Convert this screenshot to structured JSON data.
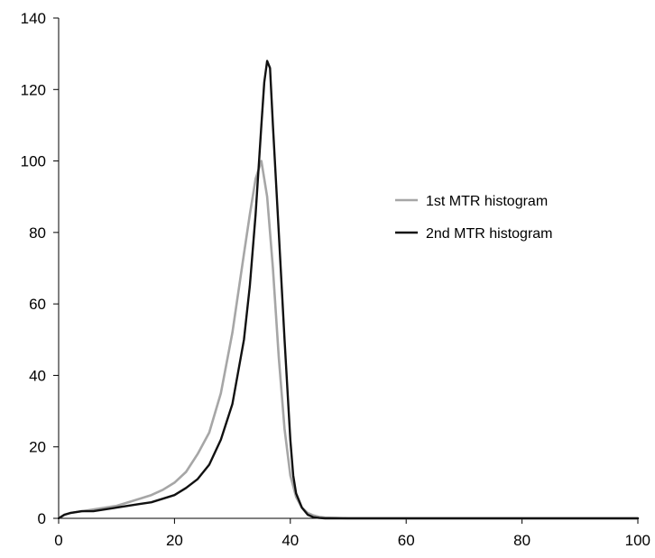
{
  "chart_data": {
    "type": "line",
    "title": "",
    "xlabel": "",
    "ylabel": "",
    "xlim": [
      0,
      100
    ],
    "ylim": [
      0,
      140
    ],
    "xticks": [
      0,
      20,
      40,
      60,
      80,
      100
    ],
    "yticks": [
      0,
      20,
      40,
      60,
      80,
      100,
      120,
      140
    ],
    "grid": false,
    "legend_position": "right",
    "series": [
      {
        "name": "1st MTR histogram",
        "color": "#a6a6a6",
        "x": [
          0,
          1,
          2,
          4,
          6,
          8,
          10,
          12,
          14,
          16,
          18,
          20,
          22,
          24,
          26,
          28,
          30,
          32,
          33,
          34,
          35,
          36,
          37,
          38,
          39,
          40,
          41,
          42,
          43,
          44,
          45,
          46,
          48,
          50,
          60,
          70,
          80,
          90,
          100
        ],
        "y": [
          0,
          1,
          1.5,
          2,
          2.5,
          3,
          3.5,
          4.5,
          5.5,
          6.5,
          8,
          10,
          13,
          18,
          24,
          35,
          52,
          74,
          85,
          95,
          100,
          90,
          70,
          45,
          25,
          12,
          6,
          3,
          1.5,
          0.8,
          0.4,
          0.2,
          0.1,
          0,
          0,
          0,
          0,
          0,
          0
        ]
      },
      {
        "name": "2nd MTR histogram",
        "color": "#111111",
        "x": [
          0,
          1,
          2,
          4,
          6,
          8,
          10,
          12,
          14,
          16,
          18,
          20,
          22,
          24,
          26,
          28,
          30,
          32,
          33,
          34,
          35,
          35.5,
          36,
          36.5,
          37,
          38,
          39,
          40,
          40.5,
          41,
          42,
          43,
          44,
          45,
          46,
          48,
          50,
          60,
          70,
          80,
          90,
          100
        ],
        "y": [
          0,
          1,
          1.5,
          2,
          2,
          2.5,
          3,
          3.5,
          4,
          4.5,
          5.5,
          6.5,
          8.5,
          11,
          15,
          22,
          32,
          50,
          65,
          85,
          110,
          122,
          128,
          126,
          110,
          80,
          50,
          22,
          12,
          7,
          3,
          1,
          0.3,
          0.1,
          0,
          0,
          0,
          0,
          0,
          0,
          0,
          0
        ]
      }
    ]
  }
}
